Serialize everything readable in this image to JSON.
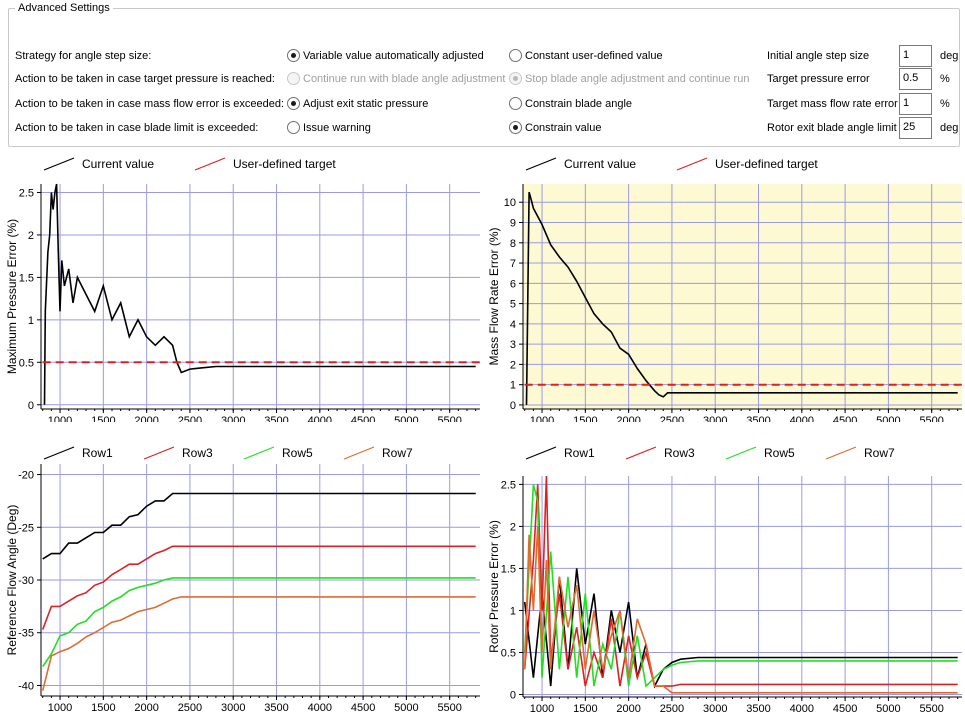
{
  "advanced": {
    "title": "Advanced Settings",
    "rows": [
      {
        "label": "Strategy for angle step size:",
        "opt1": {
          "label": "Variable value automatically adjusted",
          "checked": true,
          "disabled": false
        },
        "opt2": {
          "label": "Constant user-defined value",
          "checked": false,
          "disabled": false
        },
        "param": {
          "label": "Initial angle step size",
          "value": "1",
          "unit": "deg"
        }
      },
      {
        "label": "Action to be taken in case target pressure is reached:",
        "opt1": {
          "label": "Continue run with blade angle adjustment",
          "checked": false,
          "disabled": true
        },
        "opt2": {
          "label": "Stop blade angle adjustment and continue run",
          "checked": true,
          "disabled": true
        },
        "param": {
          "label": "Target pressure error",
          "value": "0.5",
          "unit": "%"
        }
      },
      {
        "label": "Action to be taken in case mass flow error is exceeded:",
        "opt1": {
          "label": "Adjust exit static pressure",
          "checked": true,
          "disabled": false
        },
        "opt2": {
          "label": "Constrain blade angle",
          "checked": false,
          "disabled": false
        },
        "param": {
          "label": "Target mass flow rate error",
          "value": "1",
          "unit": "%"
        }
      },
      {
        "label": "Action to be taken in case blade limit is exceeded:",
        "opt1": {
          "label": "Issue warning",
          "checked": false,
          "disabled": false
        },
        "opt2": {
          "label": "Constrain value",
          "checked": true,
          "disabled": false
        },
        "param": {
          "label": "Rotor exit blade angle limit",
          "value": "25",
          "unit": "deg"
        }
      }
    ]
  },
  "charts": {
    "pressure": {
      "legend": [
        "Current value",
        "User-defined target"
      ],
      "legend_colors": [
        "#000000",
        "#e02020"
      ],
      "ylabel": "Maximum Pressure Error (%)",
      "xticks": [
        "1000",
        "1500",
        "2000",
        "2500",
        "3000",
        "3500",
        "4000",
        "4500",
        "5000",
        "5500"
      ],
      "yticks": [
        "0",
        "0.5",
        "1",
        "1.5",
        "2",
        "2.5"
      ]
    },
    "massflow": {
      "legend": [
        "Current value",
        "User-defined target"
      ],
      "legend_colors": [
        "#000000",
        "#e02020"
      ],
      "ylabel": "Mass Flow Rate Error (%)",
      "xticks": [
        "1000",
        "1500",
        "2000",
        "2500",
        "3000",
        "3500",
        "4000",
        "4500",
        "5000",
        "5500"
      ],
      "yticks": [
        "0",
        "1",
        "2",
        "3",
        "4",
        "5",
        "6",
        "7",
        "8",
        "9",
        "10"
      ]
    },
    "angle": {
      "legend": [
        "Row1",
        "Row3",
        "Row5",
        "Row7"
      ],
      "legend_colors": [
        "#000000",
        "#e02020",
        "#20e020",
        "#e06a30"
      ],
      "ylabel": "Reference Flow Angle (Deg)",
      "xticks": [
        "1000",
        "1500",
        "2000",
        "2500",
        "3000",
        "3500",
        "4000",
        "4500",
        "5000",
        "5500"
      ],
      "yticks": [
        "-40",
        "-35",
        "-30",
        "-25",
        "-20"
      ]
    },
    "rotor": {
      "legend": [
        "Row1",
        "Row3",
        "Row5",
        "Row7"
      ],
      "legend_colors": [
        "#000000",
        "#e02020",
        "#20e020",
        "#e06a30"
      ],
      "ylabel": "Rotor Pressure Error (%)",
      "xticks": [
        "1000",
        "1500",
        "2000",
        "2500",
        "3000",
        "3500",
        "4000",
        "4500",
        "5000",
        "5500"
      ],
      "yticks": [
        "0",
        "0.5",
        "1",
        "1.5",
        "2",
        "2.5"
      ]
    }
  },
  "chart_data": [
    {
      "type": "line",
      "ylabel": "Maximum Pressure Error (%)",
      "xlim": [
        780,
        5850
      ],
      "ylim": [
        -0.05,
        2.6
      ],
      "series": [
        {
          "name": "Current value",
          "x": [
            820,
            830,
            860,
            880,
            900,
            920,
            940,
            960,
            980,
            1000,
            1020,
            1050,
            1100,
            1150,
            1200,
            1300,
            1400,
            1500,
            1600,
            1700,
            1800,
            1900,
            2000,
            2100,
            2200,
            2300,
            2350,
            2400,
            2500,
            2600,
            2800,
            5800
          ],
          "y": [
            0,
            1.1,
            1.8,
            2.0,
            2.5,
            2.3,
            2.5,
            2.6,
            1.8,
            1.1,
            1.7,
            1.4,
            1.6,
            1.2,
            1.5,
            1.3,
            1.1,
            1.4,
            1.0,
            1.2,
            0.8,
            1.0,
            0.8,
            0.7,
            0.8,
            0.7,
            0.5,
            0.38,
            0.42,
            0.43,
            0.45,
            0.45
          ]
        },
        {
          "name": "User-defined target",
          "x": [
            800,
            5850
          ],
          "y": [
            0.5,
            0.5
          ]
        }
      ]
    },
    {
      "type": "line",
      "ylabel": "Mass Flow Rate Error (%)",
      "xlim": [
        780,
        5850
      ],
      "ylim": [
        -0.2,
        10.9
      ],
      "series": [
        {
          "name": "Current value",
          "x": [
            820,
            850,
            870,
            900,
            950,
            1000,
            1100,
            1200,
            1300,
            1400,
            1500,
            1600,
            1700,
            1800,
            1900,
            2000,
            2100,
            2200,
            2300,
            2350,
            2400,
            2450,
            5800
          ],
          "y": [
            0,
            10.5,
            10.2,
            9.7,
            9.3,
            8.9,
            7.9,
            7.3,
            6.8,
            6.1,
            5.3,
            4.5,
            4.0,
            3.6,
            2.8,
            2.5,
            1.8,
            1.2,
            0.7,
            0.5,
            0.4,
            0.6,
            0.6
          ]
        },
        {
          "name": "User-defined target",
          "x": [
            800,
            5850
          ],
          "y": [
            1,
            1
          ]
        }
      ]
    },
    {
      "type": "line",
      "ylabel": "Reference Flow Angle (Deg)",
      "xlim": [
        780,
        5850
      ],
      "ylim": [
        -41,
        -19
      ],
      "series": [
        {
          "name": "Row1",
          "x": [
            800,
            900,
            1000,
            1100,
            1200,
            1300,
            1400,
            1500,
            1600,
            1700,
            1800,
            1900,
            2000,
            2100,
            2200,
            2300,
            5800
          ],
          "y": [
            -28,
            -27.5,
            -27.5,
            -26.5,
            -26.5,
            -26,
            -25.5,
            -25.5,
            -24.8,
            -24.8,
            -24,
            -23.8,
            -23,
            -22.5,
            -22.5,
            -21.8,
            -21.8
          ]
        },
        {
          "name": "Row3",
          "x": [
            800,
            900,
            1000,
            1100,
            1200,
            1300,
            1400,
            1500,
            1600,
            1700,
            1800,
            1900,
            2000,
            2100,
            2200,
            2300,
            5800
          ],
          "y": [
            -34.7,
            -32.5,
            -32.5,
            -32,
            -31.5,
            -31.2,
            -30.5,
            -30.2,
            -29.5,
            -29,
            -28.5,
            -28.5,
            -28,
            -27.5,
            -27.2,
            -26.8,
            -26.8
          ]
        },
        {
          "name": "Row5",
          "x": [
            800,
            900,
            1000,
            1100,
            1200,
            1300,
            1400,
            1500,
            1600,
            1700,
            1800,
            1900,
            2000,
            2100,
            2200,
            2300,
            5800
          ],
          "y": [
            -38.2,
            -37,
            -35.3,
            -35,
            -34.2,
            -33.9,
            -33,
            -32.6,
            -32,
            -31.6,
            -31,
            -30.7,
            -30.5,
            -30.3,
            -30,
            -29.8,
            -29.8
          ]
        },
        {
          "name": "Row7",
          "x": [
            800,
            900,
            1000,
            1100,
            1200,
            1300,
            1400,
            1500,
            1600,
            1700,
            1800,
            1900,
            2000,
            2100,
            2200,
            2300,
            2400,
            5800
          ],
          "y": [
            -40.5,
            -37.2,
            -36.8,
            -36.5,
            -36,
            -35.4,
            -35,
            -34.5,
            -34,
            -33.8,
            -33.4,
            -33,
            -32.8,
            -32.6,
            -32.2,
            -31.8,
            -31.6,
            -31.6
          ]
        }
      ]
    },
    {
      "type": "line",
      "ylabel": "Rotor Pressure Error (%)",
      "xlim": [
        780,
        5850
      ],
      "ylim": [
        -0.03,
        2.6
      ],
      "series": [
        {
          "name": "Row1",
          "x": [
            800,
            900,
            1000,
            1100,
            1200,
            1300,
            1400,
            1500,
            1600,
            1700,
            1800,
            1900,
            2000,
            2100,
            2200,
            2300,
            2400,
            2500,
            2600,
            2800,
            5800
          ],
          "y": [
            1.1,
            0.2,
            1.2,
            0.1,
            1.4,
            0.3,
            1.5,
            0.6,
            1.2,
            0.2,
            1.0,
            0.5,
            1.1,
            0.2,
            0.6,
            0.1,
            0.3,
            0.38,
            0.42,
            0.44,
            0.44
          ]
        },
        {
          "name": "Row3",
          "x": [
            800,
            900,
            950,
            1000,
            1050,
            1100,
            1200,
            1300,
            1400,
            1500,
            1600,
            1700,
            1800,
            1900,
            2000,
            2100,
            2200,
            2300,
            2400,
            2500,
            2600,
            5800
          ],
          "y": [
            0.3,
            1.6,
            2.5,
            1.0,
            2.6,
            0.4,
            1.2,
            0.3,
            0.8,
            0.1,
            0.5,
            0.2,
            0.9,
            0.1,
            0.7,
            0.2,
            0.5,
            0.1,
            0.1,
            0.1,
            0.12,
            0.12
          ]
        },
        {
          "name": "Row5",
          "x": [
            800,
            900,
            950,
            1000,
            1100,
            1200,
            1300,
            1400,
            1500,
            1600,
            1700,
            1800,
            1900,
            2000,
            2100,
            2200,
            2300,
            2400,
            2500,
            2600,
            2800,
            5800
          ],
          "y": [
            0.5,
            2.5,
            2.3,
            0.2,
            1.7,
            0.3,
            1.4,
            0.2,
            1.2,
            0.1,
            0.6,
            0.3,
            1.0,
            0.1,
            0.7,
            0.1,
            0.2,
            0.3,
            0.35,
            0.38,
            0.4,
            0.4
          ]
        },
        {
          "name": "Row7",
          "x": [
            800,
            850,
            900,
            950,
            1000,
            1050,
            1100,
            1200,
            1300,
            1400,
            1500,
            1600,
            1700,
            1800,
            1900,
            2000,
            2100,
            2200,
            2300,
            2400,
            2500,
            2600,
            5800
          ],
          "y": [
            0.3,
            1.9,
            1.0,
            2.0,
            0.5,
            1.6,
            0.3,
            1.4,
            0.8,
            1.3,
            0.3,
            1.0,
            0.3,
            0.7,
            1.0,
            0.2,
            0.9,
            0.6,
            0.1,
            0.1,
            0.02,
            0.02,
            0.02
          ]
        }
      ]
    }
  ]
}
